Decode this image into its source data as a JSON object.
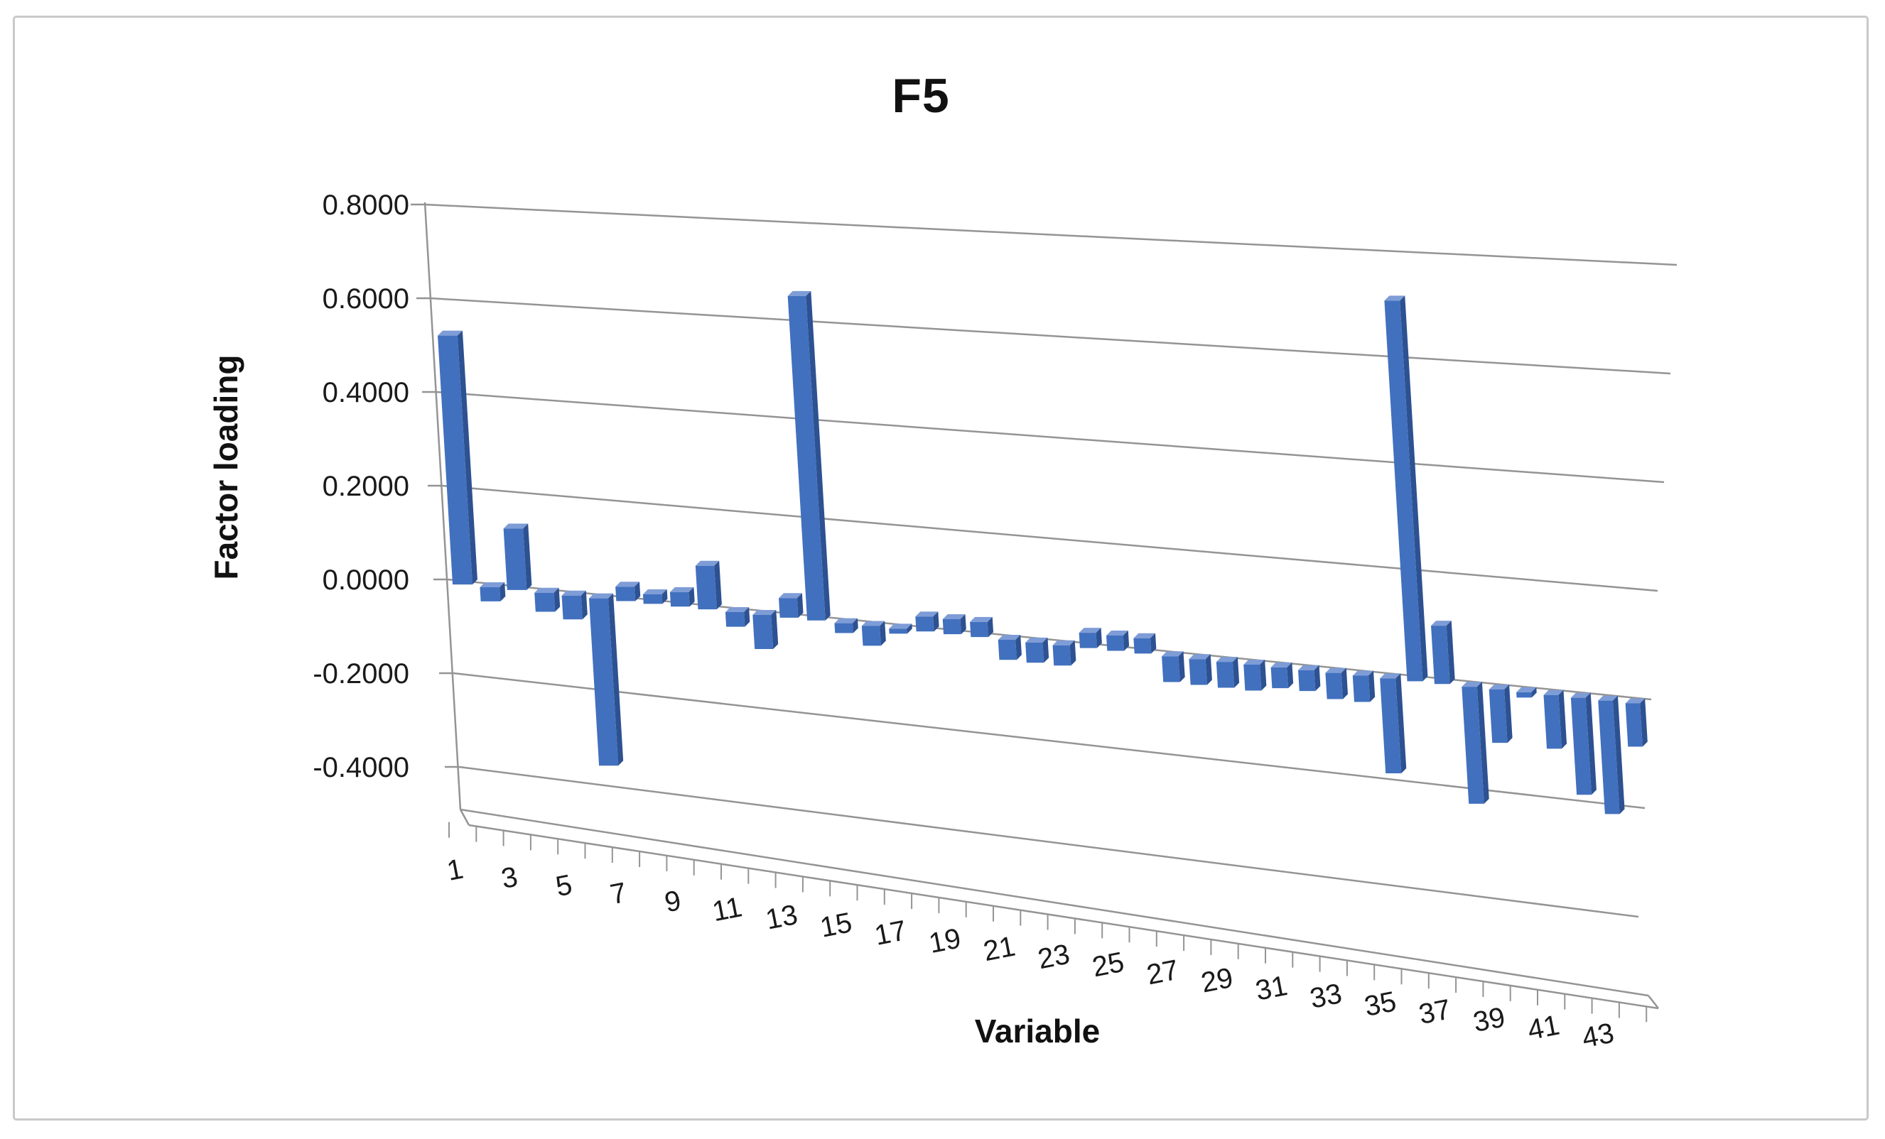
{
  "window": {
    "background_color": "#ffffff",
    "border_color": "#c9c9c9"
  },
  "chart_data": {
    "type": "bar",
    "projection": "3d",
    "title": "F5",
    "xlabel": "Variable",
    "ylabel": "Factor loading",
    "categories": [
      1,
      2,
      3,
      4,
      5,
      6,
      7,
      8,
      9,
      10,
      11,
      12,
      13,
      14,
      15,
      16,
      17,
      18,
      19,
      20,
      21,
      22,
      23,
      24,
      25,
      26,
      27,
      28,
      29,
      30,
      31,
      32,
      33,
      34,
      35,
      36,
      37,
      38,
      39,
      40,
      41,
      42,
      43,
      44
    ],
    "values": [
      0.53,
      -0.03,
      0.13,
      -0.04,
      -0.05,
      -0.35,
      0.03,
      0.02,
      0.03,
      0.09,
      -0.03,
      -0.07,
      0.04,
      0.66,
      -0.02,
      -0.04,
      -0.01,
      0.03,
      0.03,
      0.03,
      -0.04,
      -0.04,
      -0.04,
      0.03,
      0.03,
      0.03,
      -0.05,
      -0.05,
      -0.05,
      -0.05,
      -0.04,
      -0.04,
      -0.05,
      -0.05,
      -0.18,
      0.72,
      0.11,
      -0.22,
      -0.1,
      -0.01,
      -0.1,
      -0.18,
      -0.21,
      -0.08
    ],
    "ylim": [
      -0.4,
      0.8
    ],
    "ytick_step": 0.2,
    "ytick_labels": [
      "0.8000",
      "0.6000",
      "0.4000",
      "0.2000",
      "0.0000",
      "-0.2000",
      "-0.4000"
    ],
    "xtick_labels_shown": [
      "1",
      "3",
      "5",
      "7",
      "9",
      "11",
      "13",
      "15",
      "17",
      "19",
      "21",
      "23",
      "25",
      "27",
      "29",
      "31",
      "33",
      "35",
      "37",
      "39",
      "41",
      "43"
    ],
    "grid": true,
    "legend": false,
    "style": {
      "bar_front_color": "#4170BE",
      "bar_side_color": "#2D5191",
      "bar_top_color": "#7E9CD6",
      "grid_color": "#949494",
      "axis_color": "#949494",
      "text_color": "#1a1a1a"
    }
  }
}
